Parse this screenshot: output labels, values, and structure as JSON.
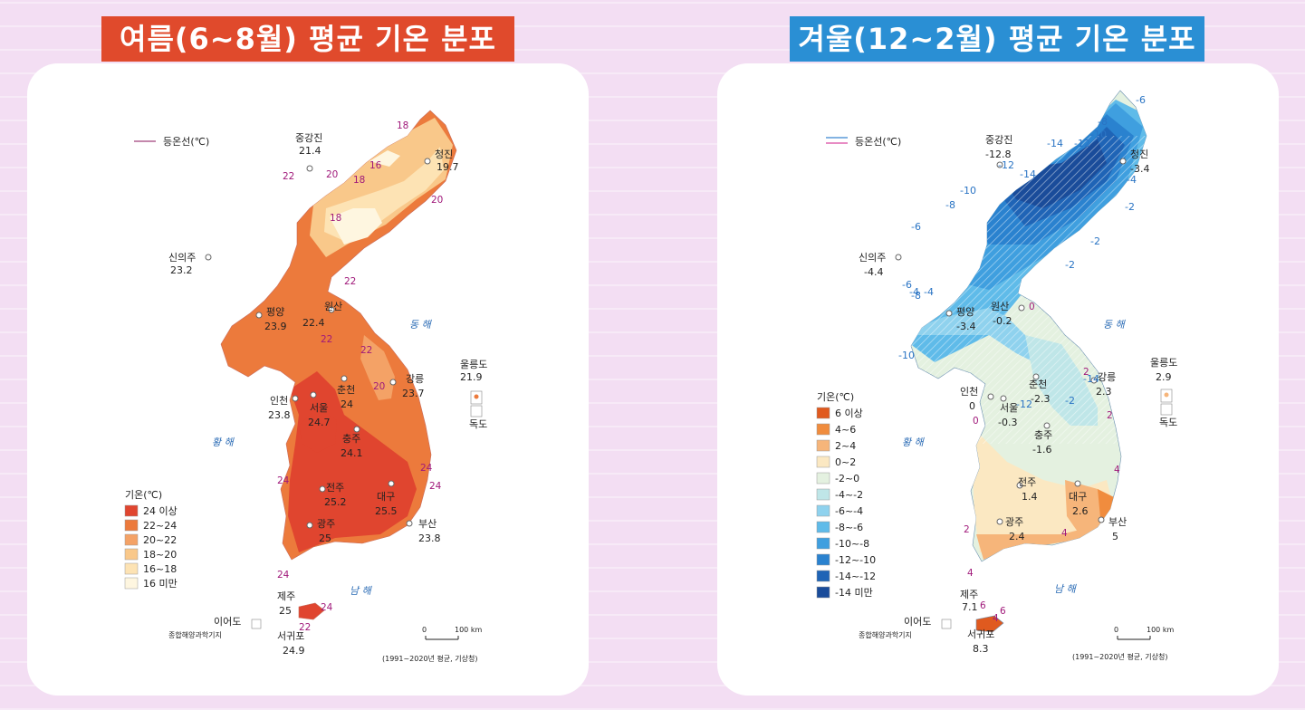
{
  "summer": {
    "title": "여름(6~8월) 평균 기온 분포",
    "isoline_legend": "등온선(℃)",
    "legend_title": "기온(℃)",
    "legend": [
      {
        "label": "24 이상",
        "color": "#e0452f"
      },
      {
        "label": "22~24",
        "color": "#ec7a3c"
      },
      {
        "label": "20~22",
        "color": "#f4a266"
      },
      {
        "label": "18~20",
        "color": "#f9c88a"
      },
      {
        "label": "16~18",
        "color": "#fde3b4"
      },
      {
        "label": "16 미만",
        "color": "#fef6e0"
      }
    ],
    "stations": [
      {
        "name": "중강진",
        "value": "21.4"
      },
      {
        "name": "청진",
        "value": "19.7"
      },
      {
        "name": "신의주",
        "value": "23.2"
      },
      {
        "name": "평양",
        "value": "23.9"
      },
      {
        "name": "원산",
        "value": "22.4"
      },
      {
        "name": "강릉",
        "value": "23.7"
      },
      {
        "name": "울릉도",
        "value": "21.9"
      },
      {
        "name": "인천",
        "value": "23.8"
      },
      {
        "name": "서울",
        "value": "24.7"
      },
      {
        "name": "춘천",
        "value": "24"
      },
      {
        "name": "충주",
        "value": "24.1"
      },
      {
        "name": "전주",
        "value": "25.2"
      },
      {
        "name": "대구",
        "value": "25.5"
      },
      {
        "name": "광주",
        "value": "25"
      },
      {
        "name": "부산",
        "value": "23.8"
      },
      {
        "name": "제주",
        "value": "25"
      },
      {
        "name": "서귀포",
        "value": "24.9"
      }
    ],
    "isolines": [
      "18",
      "16",
      "18",
      "20",
      "22",
      "20",
      "18",
      "22",
      "22",
      "22",
      "20",
      "24",
      "24",
      "24",
      "24",
      "24",
      "22"
    ],
    "sea_east": "동 해",
    "sea_west": "황 해",
    "sea_south": "남 해",
    "dokdo": "독도",
    "ieodo_1": "이어도",
    "ieodo_2": "종합해양과학기지",
    "scale_0": "0",
    "scale_100": "100 km",
    "source": "(1991~2020년 평균, 기상청)"
  },
  "winter": {
    "title": "겨울(12~2월) 평균 기온 분포",
    "isoline_legend": "등온선(℃)",
    "legend_title": "기온(℃)",
    "legend": [
      {
        "label": "6 이상",
        "color": "#e05a1f"
      },
      {
        "label": "4~6",
        "color": "#f08c3e"
      },
      {
        "label": "2~4",
        "color": "#f6b57a"
      },
      {
        "label": "0~2",
        "color": "#fbe8c2"
      },
      {
        "label": "-2~0",
        "color": "#e4f1e0"
      },
      {
        "label": "-4~-2",
        "color": "#bfe6e8"
      },
      {
        "label": "-6~-4",
        "color": "#8fd2ee"
      },
      {
        "label": "-8~-6",
        "color": "#5fbbe9"
      },
      {
        "label": "-10~-8",
        "color": "#3f9fdf"
      },
      {
        "label": "-12~-10",
        "color": "#2a82cf"
      },
      {
        "label": "-14~-12",
        "color": "#1f64b6"
      },
      {
        "label": "-14 미만",
        "color": "#1a4c9a"
      }
    ],
    "stations": [
      {
        "name": "중강진",
        "value": "-12.8"
      },
      {
        "name": "청진",
        "value": "-3.4"
      },
      {
        "name": "신의주",
        "value": "-4.4"
      },
      {
        "name": "평양",
        "value": "-3.4"
      },
      {
        "name": "원산",
        "value": "-0.2"
      },
      {
        "name": "강릉",
        "value": "2.3"
      },
      {
        "name": "울릉도",
        "value": "2.9"
      },
      {
        "name": "인천",
        "value": "0"
      },
      {
        "name": "서울",
        "value": "-0.3"
      },
      {
        "name": "춘천",
        "value": "-2.3"
      },
      {
        "name": "충주",
        "value": "-1.6"
      },
      {
        "name": "전주",
        "value": "1.4"
      },
      {
        "name": "대구",
        "value": "2.6"
      },
      {
        "name": "광주",
        "value": "2.4"
      },
      {
        "name": "부산",
        "value": "5"
      },
      {
        "name": "제주",
        "value": "7.1"
      },
      {
        "name": "서귀포",
        "value": "8.3"
      }
    ],
    "isolines": [
      "-6",
      "-8",
      "-10",
      "-12",
      "-14",
      "-14",
      "-12",
      "-10",
      "-8",
      "-6",
      "-4",
      "-2",
      "-2",
      "-2",
      "-6",
      "-8",
      "-10",
      "-12",
      "-14",
      "-4",
      "-4",
      "-2",
      "0",
      "2",
      "2",
      "0",
      "4",
      "2",
      "4",
      "4",
      "6",
      "6",
      "4"
    ],
    "sea_east": "동 해",
    "sea_west": "황 해",
    "sea_south": "남 해",
    "dokdo": "독도",
    "ieodo_1": "이어도",
    "ieodo_2": "종합해양과학기지",
    "scale_0": "0",
    "scale_100": "100 km",
    "source": "(1991~2020년 평균, 기상청)"
  }
}
